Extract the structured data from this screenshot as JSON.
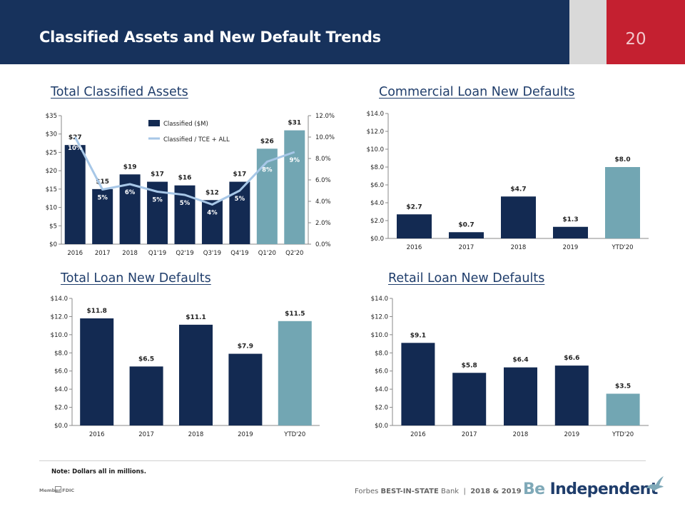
{
  "header": {
    "title": "Classified Assets and New Default Trends",
    "page_number": "20"
  },
  "colors": {
    "navy": "#132a52",
    "teal": "#72a6b3",
    "line": "#a7c7e7",
    "header_bg": "#17325c",
    "accent_red": "#c42030"
  },
  "footer": {
    "note": "Note: Dollars all in millions.",
    "fdic": "Member FDIC",
    "forbes_prefix": "Forbes",
    "forbes_bold": "BEST-IN-STATE",
    "forbes_suffix": "Bank",
    "forbes_years": "2018 & 2019",
    "brand_be": "Be",
    "brand_rest": "Independent",
    "icons": [
      "equal-housing-icon",
      "bird-logo-icon"
    ]
  },
  "chart_data": [
    {
      "id": "classified",
      "type": "bar",
      "title": "Total Classified Assets",
      "categories": [
        "2016",
        "2017",
        "2018",
        "Q1'19",
        "Q2'19",
        "Q3'19",
        "Q4'19",
        "Q1'20",
        "Q2'20"
      ],
      "ylim": [
        0,
        35
      ],
      "yticks": [
        "$0",
        "$5",
        "$10",
        "$15",
        "$20",
        "$25",
        "$30",
        "$35"
      ],
      "y2lim": [
        0,
        12
      ],
      "y2ticks": [
        "0.0%",
        "2.0%",
        "4.0%",
        "6.0%",
        "8.0%",
        "10.0%",
        "12.0%"
      ],
      "series": [
        {
          "name": "Classified ($M)",
          "type": "bar",
          "values": [
            27,
            15,
            19,
            17,
            16,
            12,
            17,
            26,
            31
          ],
          "labels": [
            "$27",
            "$15",
            "$19",
            "$17",
            "$16",
            "$12",
            "$17",
            "$26",
            "$31"
          ],
          "highlight": [
            false,
            false,
            false,
            false,
            false,
            false,
            false,
            true,
            true
          ]
        },
        {
          "name": "Classified / TCE + ALL",
          "type": "line",
          "axis": "right",
          "values": [
            10.0,
            5.1,
            5.6,
            4.9,
            4.6,
            3.7,
            5.0,
            7.7,
            8.6
          ],
          "labels": [
            "10%",
            "5%",
            "6%",
            "5%",
            "5%",
            "4%",
            "5%",
            "8%",
            "9%"
          ]
        }
      ],
      "legend": "top-center",
      "grid": false
    },
    {
      "id": "commercial",
      "type": "bar",
      "title": "Commercial Loan New Defaults",
      "categories": [
        "2016",
        "2017",
        "2018",
        "2019",
        "YTD'20"
      ],
      "values": [
        2.7,
        0.7,
        4.7,
        1.3,
        8.0
      ],
      "labels": [
        "$2.7",
        "$0.7",
        "$4.7",
        "$1.3",
        "$8.0"
      ],
      "highlight": [
        false,
        false,
        false,
        false,
        true
      ],
      "ylim": [
        0,
        14
      ],
      "yticks": [
        "$0.0",
        "$2.0",
        "$4.0",
        "$6.0",
        "$8.0",
        "$10.0",
        "$12.0",
        "$14.0"
      ],
      "grid": false
    },
    {
      "id": "total",
      "type": "bar",
      "title": "Total Loan New Defaults",
      "categories": [
        "2016",
        "2017",
        "2018",
        "2019",
        "YTD'20"
      ],
      "values": [
        11.8,
        6.5,
        11.1,
        7.9,
        11.5
      ],
      "labels": [
        "$11.8",
        "$6.5",
        "$11.1",
        "$7.9",
        "$11.5"
      ],
      "highlight": [
        false,
        false,
        false,
        false,
        true
      ],
      "ylim": [
        0,
        14
      ],
      "yticks": [
        "$0.0",
        "$2.0",
        "$4.0",
        "$6.0",
        "$8.0",
        "$10.0",
        "$12.0",
        "$14.0"
      ],
      "grid": false
    },
    {
      "id": "retail",
      "type": "bar",
      "title": "Retail Loan New Defaults",
      "categories": [
        "2016",
        "2017",
        "2018",
        "2019",
        "YTD'20"
      ],
      "values": [
        9.1,
        5.8,
        6.4,
        6.6,
        3.5
      ],
      "labels": [
        "$9.1",
        "$5.8",
        "$6.4",
        "$6.6",
        "$3.5"
      ],
      "highlight": [
        false,
        false,
        false,
        false,
        true
      ],
      "ylim": [
        0,
        14
      ],
      "yticks": [
        "$0.0",
        "$2.0",
        "$4.0",
        "$6.0",
        "$8.0",
        "$10.0",
        "$12.0",
        "$14.0"
      ],
      "grid": false
    }
  ]
}
